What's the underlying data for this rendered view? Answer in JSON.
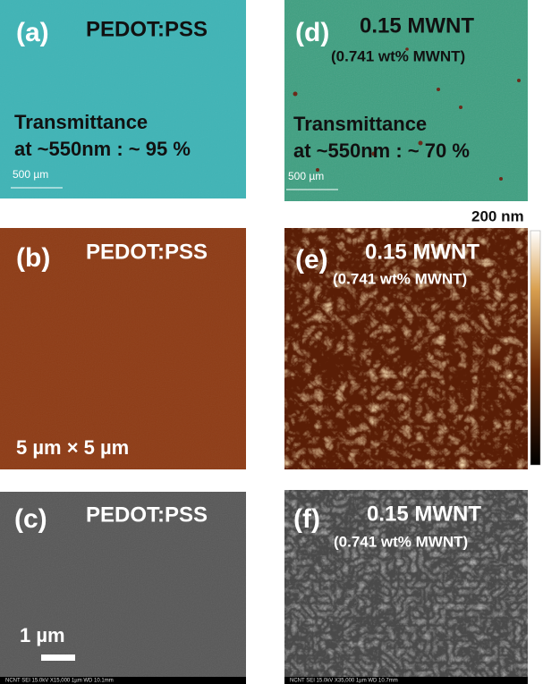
{
  "panels": [
    {
      "label": "(a)",
      "title": "PEDOT:PSS",
      "notes": [
        "Transmittance",
        "at ~550nm : ~ 95 %"
      ],
      "scale_bar": "500 µm"
    },
    {
      "label": "(d)",
      "title": "0.15 MWNT",
      "subtitle": "(0.741 wt% MWNT)",
      "notes": [
        "Transmittance",
        "at ~550nm : ~ 70 %"
      ],
      "scale_bar": "500 µm"
    },
    {
      "label": "(b)",
      "title": "PEDOT:PSS",
      "scale_bar": "5 µm × 5 µm"
    },
    {
      "label": "(e)",
      "title": "0.15 MWNT",
      "subtitle": "(0.741 wt% MWNT)",
      "colorbar_label": "200 nm"
    },
    {
      "label": "(c)",
      "title": "PEDOT:PSS",
      "scale_bar": "1 µm",
      "footer": "NCNT   SEI   15.0kV   X15,000   1µm   WD 10.1mm"
    },
    {
      "label": "(f)",
      "title": "0.15 MWNT",
      "subtitle": "(0.741 wt% MWNT)",
      "footer": "NCNT   SEI   15.0kV   X35,000   1µm   WD 10.7mm"
    }
  ]
}
